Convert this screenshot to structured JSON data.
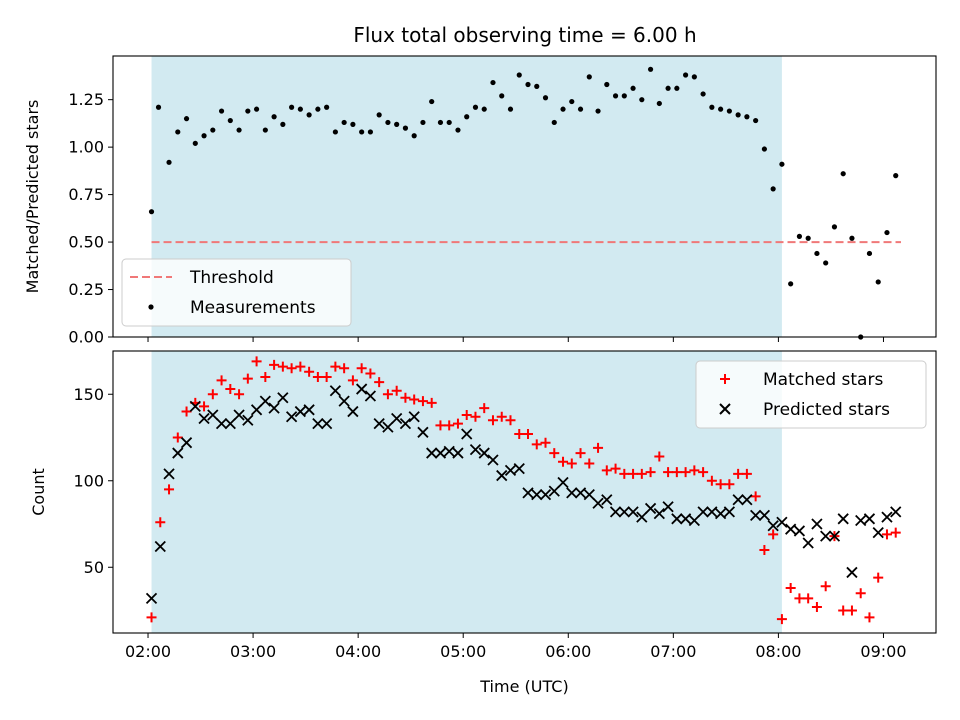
{
  "title": "Flux total observing time = 6.00 h",
  "chart_data": [
    {
      "type": "scatter",
      "ylabel": "Matched/Predicted stars",
      "xlabel": "",
      "xlim": [
        "01:40",
        "09:30"
      ],
      "ylim": [
        0,
        1.48
      ],
      "yticks": [
        0.0,
        0.25,
        0.5,
        0.75,
        1.0,
        1.25
      ],
      "ytick_labels": [
        "0.00",
        "0.25",
        "0.50",
        "0.75",
        "1.00",
        "1.25"
      ],
      "shaded_span": [
        "02:02",
        "08:02"
      ],
      "legend_position": "lower-left",
      "threshold": {
        "name": "Threshold",
        "value": 0.5,
        "x": [
          "02:02",
          "09:10"
        ],
        "color": "#f07878"
      },
      "measurements": {
        "name": "Measurements",
        "color": "#000000",
        "x": [
          "02:02",
          "02:06",
          "02:12",
          "02:17",
          "02:22",
          "02:27",
          "02:32",
          "02:37",
          "02:42",
          "02:47",
          "02:52",
          "02:57",
          "03:02",
          "03:07",
          "03:12",
          "03:17",
          "03:22",
          "03:27",
          "03:32",
          "03:37",
          "03:42",
          "03:47",
          "03:52",
          "03:57",
          "04:02",
          "04:07",
          "04:12",
          "04:17",
          "04:22",
          "04:27",
          "04:32",
          "04:37",
          "04:42",
          "04:47",
          "04:52",
          "04:57",
          "05:02",
          "05:07",
          "05:12",
          "05:17",
          "05:22",
          "05:27",
          "05:32",
          "05:37",
          "05:42",
          "05:47",
          "05:52",
          "05:57",
          "06:02",
          "06:07",
          "06:12",
          "06:17",
          "06:22",
          "06:27",
          "06:32",
          "06:37",
          "06:42",
          "06:47",
          "06:52",
          "06:57",
          "07:02",
          "07:07",
          "07:12",
          "07:17",
          "07:22",
          "07:27",
          "07:32",
          "07:37",
          "07:42",
          "07:47",
          "07:52",
          "07:57",
          "08:02",
          "08:07",
          "08:12",
          "08:17",
          "08:22",
          "08:27",
          "08:32",
          "08:37",
          "08:42",
          "08:47",
          "08:52",
          "08:57",
          "09:02",
          "09:07"
        ],
        "y": [
          0.66,
          1.21,
          0.92,
          1.08,
          1.15,
          1.02,
          1.06,
          1.09,
          1.19,
          1.14,
          1.09,
          1.19,
          1.2,
          1.09,
          1.16,
          1.12,
          1.21,
          1.2,
          1.17,
          1.2,
          1.21,
          1.08,
          1.13,
          1.12,
          1.08,
          1.08,
          1.17,
          1.13,
          1.12,
          1.1,
          1.06,
          1.13,
          1.24,
          1.13,
          1.13,
          1.09,
          1.16,
          1.21,
          1.2,
          1.34,
          1.27,
          1.2,
          1.38,
          1.33,
          1.32,
          1.26,
          1.13,
          1.2,
          1.24,
          1.2,
          1.37,
          1.19,
          1.33,
          1.27,
          1.27,
          1.31,
          1.25,
          1.41,
          1.23,
          1.31,
          1.31,
          1.38,
          1.37,
          1.28,
          1.21,
          1.2,
          1.19,
          1.17,
          1.16,
          1.14,
          0.99,
          0.78,
          0.91,
          0.28,
          0.53,
          0.52,
          0.44,
          0.39,
          0.58,
          0.86,
          0.52,
          0.0,
          0.44,
          0.29,
          0.55,
          0.85
        ]
      }
    },
    {
      "type": "scatter",
      "ylabel": "Count",
      "xlabel": "Time (UTC)",
      "xlim": [
        "01:40",
        "09:30"
      ],
      "ylim": [
        12,
        175
      ],
      "yticks": [
        50,
        100,
        150
      ],
      "ytick_labels": [
        "50",
        "100",
        "150"
      ],
      "xticks": [
        "02:00",
        "03:00",
        "04:00",
        "05:00",
        "06:00",
        "07:00",
        "08:00",
        "09:00"
      ],
      "xtick_labels": [
        "02:00",
        "03:00",
        "04:00",
        "05:00",
        "06:00",
        "07:00",
        "08:00",
        "09:00"
      ],
      "shaded_span": [
        "02:02",
        "08:02"
      ],
      "legend_position": "upper-right",
      "series": [
        {
          "name": "Matched stars",
          "marker": "plus",
          "color": "#ff0000",
          "x": [
            "02:02",
            "02:07",
            "02:12",
            "02:17",
            "02:22",
            "02:27",
            "02:32",
            "02:37",
            "02:42",
            "02:47",
            "02:52",
            "02:57",
            "03:02",
            "03:07",
            "03:12",
            "03:17",
            "03:22",
            "03:27",
            "03:32",
            "03:37",
            "03:42",
            "03:47",
            "03:52",
            "03:57",
            "04:02",
            "04:07",
            "04:12",
            "04:17",
            "04:22",
            "04:27",
            "04:32",
            "04:37",
            "04:42",
            "04:47",
            "04:52",
            "04:57",
            "05:02",
            "05:07",
            "05:12",
            "05:17",
            "05:22",
            "05:27",
            "05:32",
            "05:37",
            "05:42",
            "05:47",
            "05:52",
            "05:57",
            "06:02",
            "06:07",
            "06:12",
            "06:17",
            "06:22",
            "06:27",
            "06:32",
            "06:37",
            "06:42",
            "06:47",
            "06:52",
            "06:57",
            "07:02",
            "07:07",
            "07:12",
            "07:17",
            "07:22",
            "07:27",
            "07:32",
            "07:37",
            "07:42",
            "07:47",
            "07:52",
            "07:57",
            "08:02",
            "08:07",
            "08:12",
            "08:17",
            "08:22",
            "08:27",
            "08:32",
            "08:37",
            "08:42",
            "08:47",
            "08:52",
            "08:57",
            "09:02",
            "09:07"
          ],
          "y": [
            21,
            76,
            95,
            125,
            140,
            145,
            143,
            150,
            158,
            153,
            150,
            159,
            169,
            160,
            167,
            166,
            165,
            166,
            163,
            160,
            160,
            166,
            165,
            158,
            165,
            162,
            157,
            150,
            152,
            148,
            147,
            146,
            145,
            132,
            132,
            133,
            138,
            137,
            142,
            135,
            137,
            135,
            127,
            127,
            121,
            122,
            116,
            111,
            110,
            116,
            110,
            119,
            106,
            107,
            104,
            104,
            104,
            105,
            114,
            105,
            105,
            105,
            106,
            105,
            100,
            98,
            98,
            104,
            104,
            91,
            60,
            69,
            20,
            38,
            32,
            32,
            27,
            39,
            68,
            25,
            25,
            35,
            21,
            44,
            69,
            70
          ]
        },
        {
          "name": "Predicted stars",
          "marker": "cross",
          "color": "#000000",
          "x": [
            "02:02",
            "02:07",
            "02:12",
            "02:17",
            "02:22",
            "02:27",
            "02:32",
            "02:37",
            "02:42",
            "02:47",
            "02:52",
            "02:57",
            "03:02",
            "03:07",
            "03:12",
            "03:17",
            "03:22",
            "03:27",
            "03:32",
            "03:37",
            "03:42",
            "03:47",
            "03:52",
            "03:57",
            "04:02",
            "04:07",
            "04:12",
            "04:17",
            "04:22",
            "04:27",
            "04:32",
            "04:37",
            "04:42",
            "04:47",
            "04:52",
            "04:57",
            "05:02",
            "05:07",
            "05:12",
            "05:17",
            "05:22",
            "05:27",
            "05:32",
            "05:37",
            "05:42",
            "05:47",
            "05:52",
            "05:57",
            "06:02",
            "06:07",
            "06:12",
            "06:17",
            "06:22",
            "06:27",
            "06:32",
            "06:37",
            "06:42",
            "06:47",
            "06:52",
            "06:57",
            "07:02",
            "07:07",
            "07:12",
            "07:17",
            "07:22",
            "07:27",
            "07:32",
            "07:37",
            "07:42",
            "07:47",
            "07:52",
            "07:57",
            "08:02",
            "08:07",
            "08:12",
            "08:17",
            "08:22",
            "08:27",
            "08:32",
            "08:37",
            "08:42",
            "08:47",
            "08:52",
            "08:57",
            "09:02",
            "09:07"
          ],
          "y": [
            32,
            62,
            104,
            116,
            122,
            143,
            136,
            138,
            133,
            133,
            138,
            135,
            141,
            146,
            142,
            148,
            137,
            140,
            141,
            133,
            133,
            152,
            146,
            140,
            153,
            149,
            133,
            131,
            136,
            133,
            137,
            128,
            116,
            116,
            117,
            116,
            127,
            118,
            116,
            112,
            103,
            106,
            107,
            93,
            92,
            92,
            94,
            99,
            93,
            93,
            92,
            87,
            89,
            82,
            82,
            82,
            79,
            84,
            81,
            85,
            78,
            78,
            77,
            82,
            82,
            81,
            82,
            89,
            89,
            80,
            80,
            74,
            76,
            72,
            71,
            64,
            75,
            68,
            68,
            78,
            47,
            77,
            78,
            70,
            79,
            82
          ]
        }
      ]
    }
  ]
}
